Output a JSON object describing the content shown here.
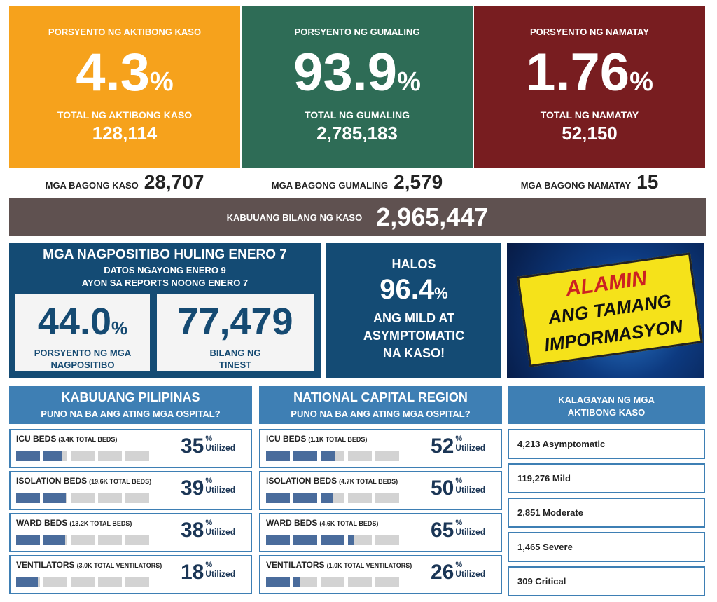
{
  "top_stats": [
    {
      "label": "PORSYENTO NG AKTIBONG KASO",
      "percent": "4.3",
      "unit": "%",
      "total_label": "TOTAL NG AKTIBONG KASO",
      "total": "128,114",
      "color": "#f6a21c"
    },
    {
      "label": "PORSYENTO NG GUMALING",
      "percent": "93.9",
      "unit": "%",
      "total_label": "TOTAL NG GUMALING",
      "total": "2,785,183",
      "color": "#2e6c56"
    },
    {
      "label": "PORSYENTO NG NAMATAY",
      "percent": "1.76",
      "unit": "%",
      "total_label": "TOTAL NG NAMATAY",
      "total": "52,150",
      "color": "#781d20"
    }
  ],
  "new_cases": [
    {
      "label": "MGA BAGONG KASO",
      "value": "28,707"
    },
    {
      "label": "MGA BAGONG GUMALING",
      "value": "2,579"
    },
    {
      "label": "MGA BAGONG NAMATAY",
      "value": "15"
    }
  ],
  "total_cases": {
    "label": "KABUUANG BILANG NG KASO",
    "value": "2,965,447"
  },
  "positivity": {
    "title": "MGA NAGPOSITIBO HULING ENERO 7",
    "subtitle_1": "DATOS NGAYONG ENERO 9",
    "subtitle_2": "AYON SA REPORTS NOONG ENERO 7",
    "rate": "44.0",
    "unit": "%",
    "rate_label_1": "PORSYENTO NG MGA",
    "rate_label_2": "NAGPOSITIBO",
    "tested": "77,479",
    "tested_label_1": "BILANG NG",
    "tested_label_2": "TINEST"
  },
  "mild": {
    "line_1": "HALOS",
    "value": "96.4",
    "unit": "%",
    "line_2": "ANG MILD AT",
    "line_3": "ASYMPTOMATIC",
    "line_4": "NA KASO!"
  },
  "banner": {
    "lines": [
      "ALAMIN",
      "ANG TAMANG",
      "IMPORMASYON"
    ]
  },
  "utilized_unit": "%",
  "utilized_label": "Utilized",
  "hospitals": [
    {
      "title": "KABUUANG PILIPINAS",
      "subtitle": "PUNO NA BA ANG ATING MGA OSPITAL?",
      "rows": [
        {
          "name": "ICU BEDS",
          "note": "(3.4K TOTAL BEDS)",
          "percent": 35
        },
        {
          "name": "ISOLATION BEDS",
          "note": "(19.6K TOTAL BEDS)",
          "percent": 39
        },
        {
          "name": "WARD BEDS",
          "note": "(13.2K TOTAL BEDS)",
          "percent": 38
        },
        {
          "name": "VENTILATORS",
          "note": "(3.0K TOTAL VENTILATORS)",
          "percent": 18
        }
      ]
    },
    {
      "title": "NATIONAL CAPITAL REGION",
      "subtitle": "PUNO NA BA ANG ATING MGA OSPITAL?",
      "rows": [
        {
          "name": "ICU BEDS",
          "note": "(1.1K TOTAL BEDS)",
          "percent": 52
        },
        {
          "name": "ISOLATION BEDS",
          "note": "(4.7K TOTAL BEDS)",
          "percent": 50
        },
        {
          "name": "WARD BEDS",
          "note": "(4.6K TOTAL BEDS)",
          "percent": 65
        },
        {
          "name": "VENTILATORS",
          "note": "(1.0K TOTAL VENTILATORS)",
          "percent": 26
        }
      ]
    }
  ],
  "active_status": {
    "title_1": "KALAGAYAN NG MGA",
    "title_2": "AKTIBONG KASO",
    "items": [
      "4,213 Asymptomatic",
      "119,276 Mild",
      "2,851 Moderate",
      "1,465 Severe",
      "309 Critical"
    ]
  }
}
